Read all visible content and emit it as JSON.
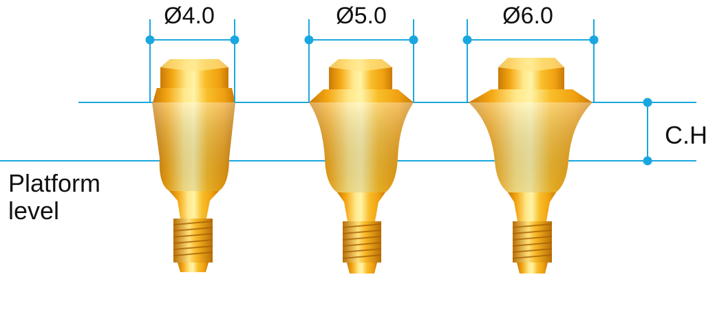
{
  "abutments": [
    {
      "diameter_label": "Ø4.0"
    },
    {
      "diameter_label": "Ø5.0"
    },
    {
      "diameter_label": "Ø6.0"
    }
  ],
  "labels": {
    "cuff_height": "C.H",
    "platform_line1": "Platform",
    "platform_line2": "level"
  },
  "colors": {
    "guide_line": "#1aa7e0",
    "gold_light": "#fff3a6",
    "gold_mid": "#f7b41c",
    "gold_dark": "#c97a05"
  }
}
